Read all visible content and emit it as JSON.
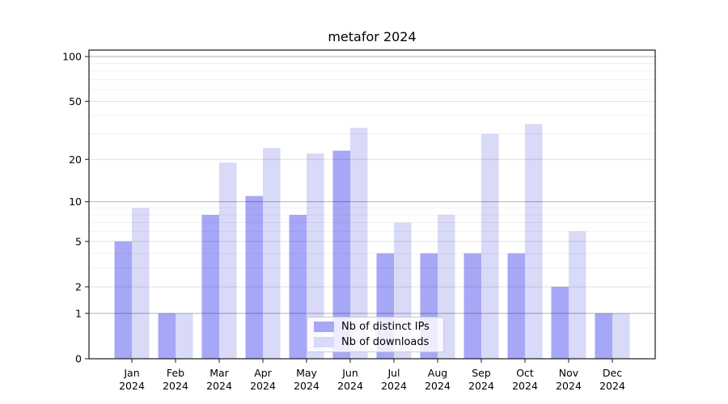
{
  "window": {
    "title": "metafor 2024"
  },
  "chart_data": {
    "type": "bar",
    "title": "metafor 2024",
    "categories": [
      "Jan 2024",
      "Feb 2024",
      "Mar 2024",
      "Apr 2024",
      "May 2024",
      "Jun 2024",
      "Jul 2024",
      "Aug 2024",
      "Sep 2024",
      "Oct 2024",
      "Nov 2024",
      "Dec 2024"
    ],
    "series": [
      {
        "name": "Nb of distinct IPs",
        "color": "#a7a7f7",
        "values": [
          5,
          1,
          8,
          11,
          8,
          23,
          4,
          4,
          4,
          4,
          2,
          1
        ]
      },
      {
        "name": "Nb of downloads",
        "color": "#d9d9f8",
        "values": [
          9,
          1,
          19,
          24,
          22,
          33,
          7,
          8,
          30,
          35,
          6,
          1
        ]
      }
    ],
    "xlabel": "",
    "ylabel": "",
    "ylim": [
      0,
      100
    ],
    "y_scale": "log1p",
    "y_ticks": [
      0,
      1,
      2,
      5,
      10,
      20,
      50,
      100
    ],
    "y_decade_gridlines": [
      1,
      10,
      100
    ],
    "y_major_gridlines": [
      2,
      5,
      20,
      50
    ],
    "y_minor_gridlines": [
      3,
      4,
      6,
      7,
      8,
      9,
      30,
      40,
      60,
      70,
      80,
      90
    ],
    "grid": true,
    "legend_position": "lower center"
  }
}
